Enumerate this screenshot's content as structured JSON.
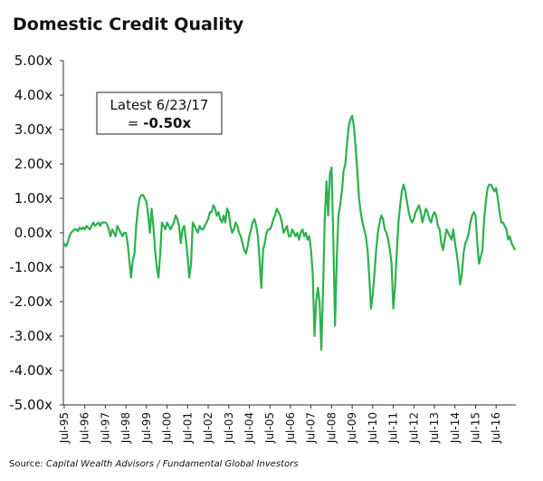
{
  "chart_data": {
    "type": "line",
    "title": "Domestic Credit Quality",
    "annotation": {
      "line1": "Latest 6/23/17",
      "prefix": "=",
      "value": "-0.50x"
    },
    "source_label": "Source:",
    "source": "Capital Wealth Advisors / Fundamental Global Investors",
    "color": "#2bb24c",
    "ylim": [
      -5,
      5
    ],
    "yticks": [
      {
        "value": 5,
        "label": "5.00x"
      },
      {
        "value": 4,
        "label": "4.00x"
      },
      {
        "value": 3,
        "label": "3.00x"
      },
      {
        "value": 2,
        "label": "2.00x"
      },
      {
        "value": 1,
        "label": "1.00x"
      },
      {
        "value": 0,
        "label": "0.00x"
      },
      {
        "value": -1,
        "label": "-1.00x"
      },
      {
        "value": -2,
        "label": "-2.00x"
      },
      {
        "value": -3,
        "label": "-3.00x"
      },
      {
        "value": -4,
        "label": "-4.00x"
      },
      {
        "value": -5,
        "label": "-5.00x"
      }
    ],
    "x": [
      "Jul-95",
      "Aug-95",
      "Sep-95",
      "Oct-95",
      "Nov-95",
      "Dec-95",
      "Jan-96",
      "Feb-96",
      "Mar-96",
      "Apr-96",
      "May-96",
      "Jun-96",
      "Jul-96",
      "Aug-96",
      "Sep-96",
      "Oct-96",
      "Nov-96",
      "Dec-96",
      "Jan-97",
      "Feb-97",
      "Mar-97",
      "Apr-97",
      "May-97",
      "Jun-97",
      "Jul-97",
      "Aug-97",
      "Sep-97",
      "Oct-97",
      "Nov-97",
      "Dec-97",
      "Jan-98",
      "Feb-98",
      "Mar-98",
      "Apr-98",
      "May-98",
      "Jun-98",
      "Jul-98",
      "Aug-98",
      "Sep-98",
      "Oct-98",
      "Nov-98",
      "Dec-98",
      "Jan-99",
      "Feb-99",
      "Mar-99",
      "Apr-99",
      "May-99",
      "Jun-99",
      "Jul-99",
      "Aug-99",
      "Sep-99",
      "Oct-99",
      "Nov-99",
      "Dec-99",
      "Jan-00",
      "Feb-00",
      "Mar-00",
      "Apr-00",
      "May-00",
      "Jun-00",
      "Jul-00",
      "Aug-00",
      "Sep-00",
      "Oct-00",
      "Nov-00",
      "Dec-00",
      "Jan-01",
      "Feb-01",
      "Mar-01",
      "Apr-01",
      "May-01",
      "Jun-01",
      "Jul-01",
      "Aug-01",
      "Sep-01",
      "Oct-01",
      "Nov-01",
      "Dec-01",
      "Jan-02",
      "Feb-02",
      "Mar-02",
      "Apr-02",
      "May-02",
      "Jun-02",
      "Jul-02",
      "Aug-02",
      "Sep-02",
      "Oct-02",
      "Nov-02",
      "Dec-02",
      "Jan-03",
      "Feb-03",
      "Mar-03",
      "Apr-03",
      "May-03",
      "Jun-03",
      "Jul-03",
      "Aug-03",
      "Sep-03",
      "Oct-03",
      "Nov-03",
      "Dec-03",
      "Jan-04",
      "Feb-04",
      "Mar-04",
      "Apr-04",
      "May-04",
      "Jun-04",
      "Jul-04",
      "Aug-04",
      "Sep-04",
      "Oct-04",
      "Nov-04",
      "Dec-04",
      "Jan-05",
      "Feb-05",
      "Mar-05",
      "Apr-05",
      "May-05",
      "Jun-05",
      "Jul-05",
      "Aug-05",
      "Sep-05",
      "Oct-05",
      "Nov-05",
      "Dec-05",
      "Jan-06",
      "Feb-06",
      "Mar-06",
      "Apr-06",
      "May-06",
      "Jun-06",
      "Jul-06",
      "Aug-06",
      "Sep-06",
      "Oct-06",
      "Nov-06",
      "Dec-06",
      "Jan-07",
      "Feb-07",
      "Mar-07",
      "Apr-07",
      "May-07",
      "Jun-07",
      "Jul-07",
      "Aug-07",
      "Sep-07",
      "Oct-07",
      "Nov-07",
      "Dec-07",
      "Jan-08",
      "Feb-08",
      "Mar-08",
      "Apr-08",
      "May-08",
      "Jun-08",
      "Jul-08",
      "Aug-08",
      "Sep-08",
      "Oct-08",
      "Nov-08",
      "Dec-08",
      "Jan-09",
      "Feb-09",
      "Mar-09",
      "Apr-09",
      "May-09",
      "Jun-09",
      "Jul-09",
      "Aug-09",
      "Sep-09",
      "Oct-09",
      "Nov-09",
      "Dec-09",
      "Jan-10",
      "Feb-10",
      "Mar-10",
      "Apr-10",
      "May-10",
      "Jun-10",
      "Jul-10",
      "Aug-10",
      "Sep-10",
      "Oct-10",
      "Nov-10",
      "Dec-10",
      "Jan-11",
      "Feb-11",
      "Mar-11",
      "Apr-11",
      "May-11",
      "Jun-11",
      "Jul-11",
      "Aug-11",
      "Sep-11",
      "Oct-11",
      "Nov-11",
      "Dec-11",
      "Jan-12",
      "Feb-12",
      "Mar-12",
      "Apr-12",
      "May-12",
      "Jun-12",
      "Jul-12",
      "Aug-12",
      "Sep-12",
      "Oct-12",
      "Nov-12",
      "Dec-12",
      "Jan-13",
      "Feb-13",
      "Mar-13",
      "Apr-13",
      "May-13",
      "Jun-13",
      "Jul-13",
      "Aug-13",
      "Sep-13",
      "Oct-13",
      "Nov-13",
      "Dec-13",
      "Jan-14",
      "Feb-14",
      "Mar-14",
      "Apr-14",
      "May-14",
      "Jun-14",
      "Jul-14",
      "Aug-14",
      "Sep-14",
      "Oct-14",
      "Nov-14",
      "Dec-14",
      "Jan-15",
      "Feb-15",
      "Mar-15",
      "Apr-15",
      "May-15",
      "Jun-15",
      "Jul-15",
      "Aug-15",
      "Sep-15",
      "Oct-15",
      "Nov-15",
      "Dec-15",
      "Jan-16",
      "Feb-16",
      "Mar-16",
      "Apr-16",
      "May-16",
      "Jun-16",
      "Jul-16",
      "Aug-16",
      "Sep-16",
      "Oct-16",
      "Nov-16",
      "Dec-16",
      "Jan-17",
      "Feb-17",
      "Mar-17",
      "Apr-17",
      "May-17",
      "Jun-17"
    ],
    "values": [
      -0.3,
      -0.4,
      -0.3,
      -0.1,
      0,
      0.05,
      0.1,
      0.1,
      0.05,
      0.15,
      0.1,
      0.15,
      0.1,
      0.2,
      0.15,
      0.1,
      0.2,
      0.3,
      0.2,
      0.25,
      0.3,
      0.2,
      0.3,
      0.3,
      0.3,
      0.25,
      0.1,
      -0.1,
      0.1,
      0,
      -0.1,
      0.2,
      0.1,
      0,
      -0.1,
      0,
      0,
      -0.3,
      -0.8,
      -1.3,
      -0.8,
      -0.6,
      0.2,
      0.7,
      1.0,
      1.1,
      1.1,
      1.0,
      0.9,
      0.5,
      0,
      0.7,
      0.2,
      -0.5,
      -1.0,
      -1.3,
      -0.6,
      0.3,
      0.2,
      0.1,
      0.3,
      0.2,
      0.1,
      0.2,
      0.3,
      0.5,
      0.4,
      0.2,
      -0.3,
      0.1,
      0.2,
      -0.2,
      -0.7,
      -1.3,
      -0.9,
      0.3,
      0.2,
      0.1,
      0,
      0.2,
      0.1,
      0.1,
      0.2,
      0.3,
      0.4,
      0.6,
      0.6,
      0.8,
      0.7,
      0.5,
      0.6,
      0.4,
      0.3,
      0.5,
      0.3,
      0.7,
      0.6,
      0.2,
      0,
      0.1,
      0.3,
      0.2,
      0,
      -0.1,
      -0.3,
      -0.5,
      -0.6,
      -0.4,
      -0.1,
      0.1,
      0.3,
      0.4,
      0.2,
      -0.1,
      -0.8,
      -1.6,
      -0.5,
      -0.3,
      0,
      0.1,
      0.1,
      0.2,
      0.4,
      0.5,
      0.7,
      0.6,
      0.5,
      0.3,
      0,
      0.1,
      0.2,
      -0.1,
      -0.1,
      0.1,
      0,
      -0.1,
      0,
      -0.2,
      0,
      0.1,
      -0.1,
      0,
      -0.2,
      -0.1,
      -0.5,
      -1.2,
      -3.0,
      -2.0,
      -1.6,
      -2.0,
      -3.4,
      -1.7,
      0.4,
      1.5,
      0.5,
      1.7,
      1.9,
      -0.2,
      -2.7,
      -0.8,
      0.5,
      0.8,
      1.2,
      1.8,
      2.0,
      2.6,
      3.1,
      3.3,
      3.4,
      3.1,
      2.5,
      1.8,
      1.0,
      0.6,
      0.3,
      0.1,
      -0.1,
      -0.5,
      -1.3,
      -2.2,
      -1.8,
      -1.2,
      -0.5,
      0,
      0.3,
      0.5,
      0.4,
      0.1,
      0,
      -0.2,
      -0.5,
      -0.9,
      -2.2,
      -1.6,
      -0.6,
      0.3,
      0.8,
      1.2,
      1.4,
      1.2,
      0.9,
      0.6,
      0.4,
      0.3,
      0.4,
      0.6,
      0.7,
      0.8,
      0.6,
      0.3,
      0.5,
      0.7,
      0.6,
      0.4,
      0.3,
      0.5,
      0.6,
      0.5,
      0.2,
      0.1,
      -0.3,
      -0.5,
      -0.2,
      0.1,
      0,
      -0.1,
      -0.2,
      0.1,
      -0.3,
      -0.6,
      -1.0,
      -1.5,
      -1.2,
      -0.6,
      -0.3,
      -0.2,
      0,
      0.3,
      0.5,
      0.6,
      0.5,
      -0.3,
      -0.9,
      -0.7,
      -0.5,
      0.4,
      0.9,
      1.3,
      1.4,
      1.4,
      1.3,
      1.2,
      1.3,
      1.0,
      0.6,
      0.3,
      0.3,
      0.2,
      0.1,
      -0.2,
      -0.1,
      -0.3,
      -0.4,
      -0.5
    ],
    "x_label_every": 12
  }
}
